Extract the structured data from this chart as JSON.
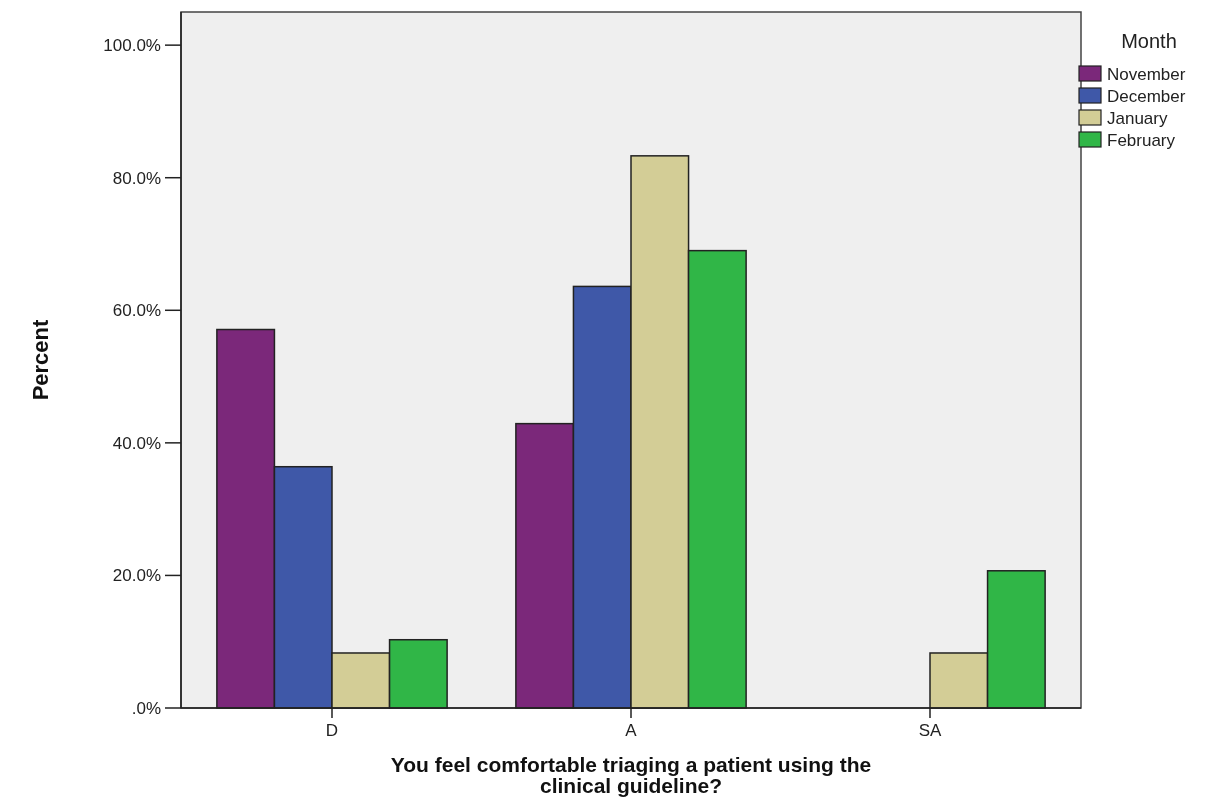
{
  "chart_data": {
    "type": "bar",
    "xlabel": "You feel comfortable triaging a patient using the clinical guideline?",
    "ylabel": "Percent",
    "legend_title": "Month",
    "legend": "right",
    "categories": [
      "D",
      "A",
      "SA"
    ],
    "series": [
      {
        "name": "November",
        "color": "#7b287a",
        "values": [
          57.1,
          42.9,
          0
        ]
      },
      {
        "name": "December",
        "color": "#3f58a8",
        "values": [
          36.4,
          63.6,
          0
        ]
      },
      {
        "name": "January",
        "color": "#d3cd96",
        "values": [
          8.3,
          83.3,
          8.3
        ]
      },
      {
        "name": "February",
        "color": "#30b647",
        "values": [
          10.3,
          69.0,
          20.7
        ]
      }
    ],
    "ylim": [
      0,
      105
    ],
    "yticks": [
      {
        "value": 0,
        "label": ".0%"
      },
      {
        "value": 20,
        "label": "20.0%"
      },
      {
        "value": 40,
        "label": "40.0%"
      },
      {
        "value": 60,
        "label": "60.0%"
      },
      {
        "value": 80,
        "label": "80.0%"
      },
      {
        "value": 100,
        "label": "100.0%"
      }
    ],
    "grid": false
  }
}
